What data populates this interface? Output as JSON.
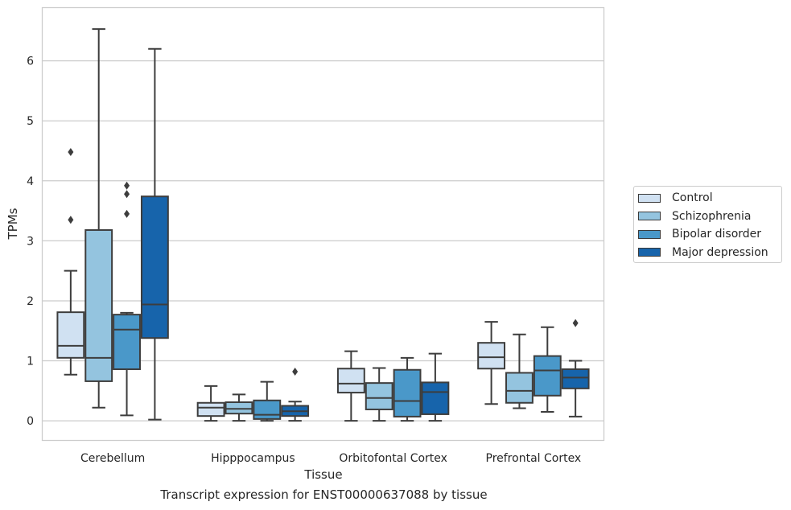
{
  "chart_data": {
    "type": "box",
    "xlabel": "Tissue",
    "ylabel": "TPMs",
    "ylim": [
      -0.32,
      6.88
    ],
    "yticks": [
      0,
      1,
      2,
      3,
      4,
      5,
      6
    ],
    "grid": true,
    "legend_position": "right",
    "categories": [
      "Cerebellum",
      "Hipppocampus",
      "Orbitofontal Cortex",
      "Prefrontal Cortex"
    ],
    "series": [
      {
        "name": "Control",
        "color": "#d0e1f2",
        "boxes": [
          {
            "whislo": 0.77,
            "q1": 1.05,
            "med": 1.25,
            "q3": 1.81,
            "whishi": 2.5,
            "fliers": [
              3.35,
              4.48
            ]
          },
          {
            "whislo": 0.0,
            "q1": 0.08,
            "med": 0.22,
            "q3": 0.3,
            "whishi": 0.58,
            "fliers": []
          },
          {
            "whislo": 0.0,
            "q1": 0.47,
            "med": 0.62,
            "q3": 0.87,
            "whishi": 1.16,
            "fliers": []
          },
          {
            "whislo": 0.28,
            "q1": 0.87,
            "med": 1.06,
            "q3": 1.3,
            "whishi": 1.65,
            "fliers": []
          }
        ]
      },
      {
        "name": "Schizophrenia",
        "color": "#94c4df",
        "boxes": [
          {
            "whislo": 0.22,
            "q1": 0.66,
            "med": 1.05,
            "q3": 3.18,
            "whishi": 6.53,
            "fliers": []
          },
          {
            "whislo": 0.0,
            "q1": 0.12,
            "med": 0.2,
            "q3": 0.31,
            "whishi": 0.44,
            "fliers": []
          },
          {
            "whislo": 0.0,
            "q1": 0.19,
            "med": 0.38,
            "q3": 0.63,
            "whishi": 0.88,
            "fliers": []
          },
          {
            "whislo": 0.21,
            "q1": 0.3,
            "med": 0.5,
            "q3": 0.8,
            "whishi": 1.44,
            "fliers": []
          }
        ]
      },
      {
        "name": "Bipolar disorder",
        "color": "#4a98c9",
        "boxes": [
          {
            "whislo": 0.09,
            "q1": 0.86,
            "med": 1.52,
            "q3": 1.77,
            "whishi": 1.8,
            "fliers": [
              3.45,
              3.78,
              3.92
            ]
          },
          {
            "whislo": 0.0,
            "q1": 0.03,
            "med": 0.1,
            "q3": 0.34,
            "whishi": 0.65,
            "fliers": []
          },
          {
            "whislo": 0.0,
            "q1": 0.07,
            "med": 0.33,
            "q3": 0.85,
            "whishi": 1.05,
            "fliers": []
          },
          {
            "whislo": 0.15,
            "q1": 0.42,
            "med": 0.84,
            "q3": 1.08,
            "whishi": 1.56,
            "fliers": []
          }
        ]
      },
      {
        "name": "Major depression",
        "color": "#1764ab",
        "boxes": [
          {
            "whislo": 0.02,
            "q1": 1.38,
            "med": 1.94,
            "q3": 3.74,
            "whishi": 6.2,
            "fliers": []
          },
          {
            "whislo": 0.0,
            "q1": 0.08,
            "med": 0.16,
            "q3": 0.25,
            "whishi": 0.32,
            "fliers": [
              0.82
            ]
          },
          {
            "whislo": 0.0,
            "q1": 0.11,
            "med": 0.48,
            "q3": 0.64,
            "whishi": 1.12,
            "fliers": []
          },
          {
            "whislo": 0.07,
            "q1": 0.54,
            "med": 0.72,
            "q3": 0.86,
            "whishi": 1.0,
            "fliers": [
              1.63
            ]
          }
        ]
      }
    ]
  },
  "caption": "Transcript expression for ENST00000637088 by tissue"
}
